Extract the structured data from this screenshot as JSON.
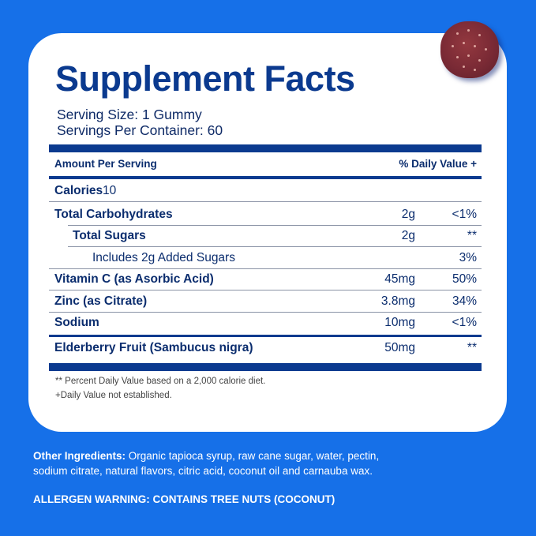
{
  "title": "Supplement Facts",
  "serving_size": "Serving Size: 1 Gummy",
  "servings_per_container": "Servings Per Container: 60",
  "header": {
    "amount": "Amount Per Serving",
    "daily_value": "% Daily Value +"
  },
  "calories": {
    "label": "Calories",
    "value": "10"
  },
  "rows": [
    {
      "name": "Total Carbohydrates",
      "amount": "2g",
      "dv": "<1%"
    },
    {
      "name": "Total Sugars",
      "amount": "2g",
      "dv": "**"
    },
    {
      "name": "Includes 2g Added Sugars",
      "amount": "",
      "dv": "3%"
    },
    {
      "name": "Vitamin C (as Asorbic Acid)",
      "amount": "45mg",
      "dv": "50%"
    },
    {
      "name": "Zinc (as Citrate)",
      "amount": "3.8mg",
      "dv": "34%"
    },
    {
      "name": "Sodium",
      "amount": "10mg",
      "dv": "<1%"
    },
    {
      "name": "Elderberry Fruit (Sambucus nigra)",
      "amount": "50mg",
      "dv": "**"
    }
  ],
  "footnotes": [
    "** Percent Daily Value based on a 2,000 calorie diet.",
    "+Daily Value not established."
  ],
  "other_ingredients": {
    "label": "Other Ingredients:",
    "line1": "Organic tapioca syrup, raw cane sugar, water, pectin,",
    "line2": "sodium citrate, natural flavors, citric acid, coconut oil and carnauba wax."
  },
  "allergen_warning": "ALLERGEN WARNING: CONTAINS TREE NUTS (COCONUT)",
  "colors": {
    "background": "#1670e8",
    "navy": "#0b3a8f",
    "panel": "#ffffff"
  }
}
